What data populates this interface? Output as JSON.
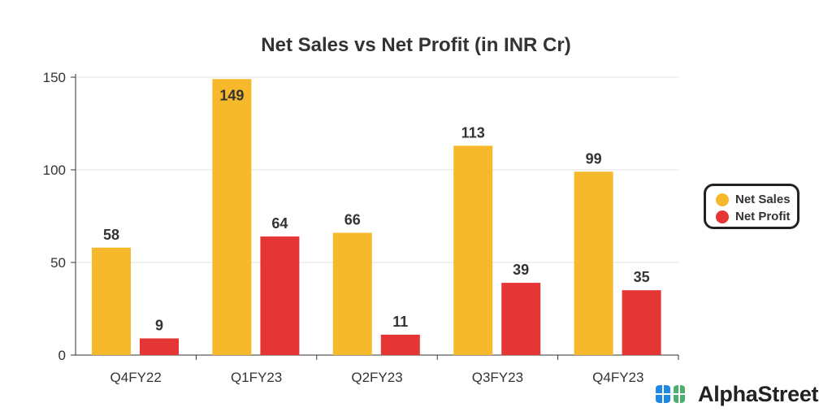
{
  "chart_data": {
    "type": "bar",
    "title": "Net Sales vs Net Profit (in INR Cr)",
    "categories": [
      "Q4FY22",
      "Q1FY23",
      "Q2FY23",
      "Q3FY23",
      "Q4FY23"
    ],
    "series": [
      {
        "name": "Net Sales",
        "color": "#F6B92B",
        "values": [
          58,
          149,
          66,
          113,
          99
        ]
      },
      {
        "name": "Net Profit",
        "color": "#E53535",
        "values": [
          9,
          64,
          11,
          39,
          35
        ]
      }
    ],
    "yticks": [
      0,
      50,
      100,
      150
    ],
    "ylim": [
      0,
      150
    ],
    "xlabel": "",
    "ylabel": "",
    "grid": true,
    "legend_position": "right"
  },
  "brand": {
    "name": "AlphaStreet"
  }
}
